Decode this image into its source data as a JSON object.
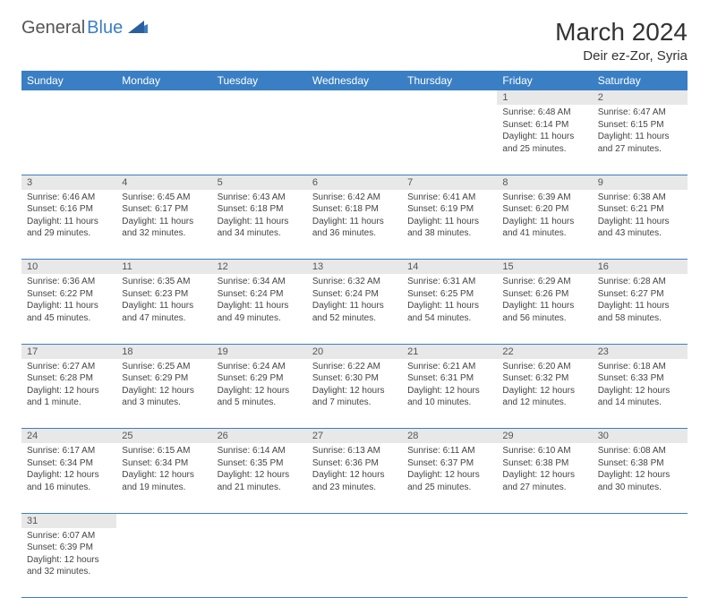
{
  "brand": {
    "part1": "General",
    "part2": "Blue"
  },
  "title": "March 2024",
  "location": "Deir ez-Zor, Syria",
  "colors": {
    "header_bg": "#3a7fc4",
    "header_text": "#ffffff",
    "daynum_bg": "#e8e8e8",
    "border": "#3a7fc4",
    "text": "#444444"
  },
  "day_headers": [
    "Sunday",
    "Monday",
    "Tuesday",
    "Wednesday",
    "Thursday",
    "Friday",
    "Saturday"
  ],
  "weeks": [
    [
      null,
      null,
      null,
      null,
      null,
      {
        "n": "1",
        "sr": "Sunrise: 6:48 AM",
        "ss": "Sunset: 6:14 PM",
        "dl": "Daylight: 11 hours and 25 minutes."
      },
      {
        "n": "2",
        "sr": "Sunrise: 6:47 AM",
        "ss": "Sunset: 6:15 PM",
        "dl": "Daylight: 11 hours and 27 minutes."
      }
    ],
    [
      {
        "n": "3",
        "sr": "Sunrise: 6:46 AM",
        "ss": "Sunset: 6:16 PM",
        "dl": "Daylight: 11 hours and 29 minutes."
      },
      {
        "n": "4",
        "sr": "Sunrise: 6:45 AM",
        "ss": "Sunset: 6:17 PM",
        "dl": "Daylight: 11 hours and 32 minutes."
      },
      {
        "n": "5",
        "sr": "Sunrise: 6:43 AM",
        "ss": "Sunset: 6:18 PM",
        "dl": "Daylight: 11 hours and 34 minutes."
      },
      {
        "n": "6",
        "sr": "Sunrise: 6:42 AM",
        "ss": "Sunset: 6:18 PM",
        "dl": "Daylight: 11 hours and 36 minutes."
      },
      {
        "n": "7",
        "sr": "Sunrise: 6:41 AM",
        "ss": "Sunset: 6:19 PM",
        "dl": "Daylight: 11 hours and 38 minutes."
      },
      {
        "n": "8",
        "sr": "Sunrise: 6:39 AM",
        "ss": "Sunset: 6:20 PM",
        "dl": "Daylight: 11 hours and 41 minutes."
      },
      {
        "n": "9",
        "sr": "Sunrise: 6:38 AM",
        "ss": "Sunset: 6:21 PM",
        "dl": "Daylight: 11 hours and 43 minutes."
      }
    ],
    [
      {
        "n": "10",
        "sr": "Sunrise: 6:36 AM",
        "ss": "Sunset: 6:22 PM",
        "dl": "Daylight: 11 hours and 45 minutes."
      },
      {
        "n": "11",
        "sr": "Sunrise: 6:35 AM",
        "ss": "Sunset: 6:23 PM",
        "dl": "Daylight: 11 hours and 47 minutes."
      },
      {
        "n": "12",
        "sr": "Sunrise: 6:34 AM",
        "ss": "Sunset: 6:24 PM",
        "dl": "Daylight: 11 hours and 49 minutes."
      },
      {
        "n": "13",
        "sr": "Sunrise: 6:32 AM",
        "ss": "Sunset: 6:24 PM",
        "dl": "Daylight: 11 hours and 52 minutes."
      },
      {
        "n": "14",
        "sr": "Sunrise: 6:31 AM",
        "ss": "Sunset: 6:25 PM",
        "dl": "Daylight: 11 hours and 54 minutes."
      },
      {
        "n": "15",
        "sr": "Sunrise: 6:29 AM",
        "ss": "Sunset: 6:26 PM",
        "dl": "Daylight: 11 hours and 56 minutes."
      },
      {
        "n": "16",
        "sr": "Sunrise: 6:28 AM",
        "ss": "Sunset: 6:27 PM",
        "dl": "Daylight: 11 hours and 58 minutes."
      }
    ],
    [
      {
        "n": "17",
        "sr": "Sunrise: 6:27 AM",
        "ss": "Sunset: 6:28 PM",
        "dl": "Daylight: 12 hours and 1 minute."
      },
      {
        "n": "18",
        "sr": "Sunrise: 6:25 AM",
        "ss": "Sunset: 6:29 PM",
        "dl": "Daylight: 12 hours and 3 minutes."
      },
      {
        "n": "19",
        "sr": "Sunrise: 6:24 AM",
        "ss": "Sunset: 6:29 PM",
        "dl": "Daylight: 12 hours and 5 minutes."
      },
      {
        "n": "20",
        "sr": "Sunrise: 6:22 AM",
        "ss": "Sunset: 6:30 PM",
        "dl": "Daylight: 12 hours and 7 minutes."
      },
      {
        "n": "21",
        "sr": "Sunrise: 6:21 AM",
        "ss": "Sunset: 6:31 PM",
        "dl": "Daylight: 12 hours and 10 minutes."
      },
      {
        "n": "22",
        "sr": "Sunrise: 6:20 AM",
        "ss": "Sunset: 6:32 PM",
        "dl": "Daylight: 12 hours and 12 minutes."
      },
      {
        "n": "23",
        "sr": "Sunrise: 6:18 AM",
        "ss": "Sunset: 6:33 PM",
        "dl": "Daylight: 12 hours and 14 minutes."
      }
    ],
    [
      {
        "n": "24",
        "sr": "Sunrise: 6:17 AM",
        "ss": "Sunset: 6:34 PM",
        "dl": "Daylight: 12 hours and 16 minutes."
      },
      {
        "n": "25",
        "sr": "Sunrise: 6:15 AM",
        "ss": "Sunset: 6:34 PM",
        "dl": "Daylight: 12 hours and 19 minutes."
      },
      {
        "n": "26",
        "sr": "Sunrise: 6:14 AM",
        "ss": "Sunset: 6:35 PM",
        "dl": "Daylight: 12 hours and 21 minutes."
      },
      {
        "n": "27",
        "sr": "Sunrise: 6:13 AM",
        "ss": "Sunset: 6:36 PM",
        "dl": "Daylight: 12 hours and 23 minutes."
      },
      {
        "n": "28",
        "sr": "Sunrise: 6:11 AM",
        "ss": "Sunset: 6:37 PM",
        "dl": "Daylight: 12 hours and 25 minutes."
      },
      {
        "n": "29",
        "sr": "Sunrise: 6:10 AM",
        "ss": "Sunset: 6:38 PM",
        "dl": "Daylight: 12 hours and 27 minutes."
      },
      {
        "n": "30",
        "sr": "Sunrise: 6:08 AM",
        "ss": "Sunset: 6:38 PM",
        "dl": "Daylight: 12 hours and 30 minutes."
      }
    ],
    [
      {
        "n": "31",
        "sr": "Sunrise: 6:07 AM",
        "ss": "Sunset: 6:39 PM",
        "dl": "Daylight: 12 hours and 32 minutes."
      },
      null,
      null,
      null,
      null,
      null,
      null
    ]
  ]
}
